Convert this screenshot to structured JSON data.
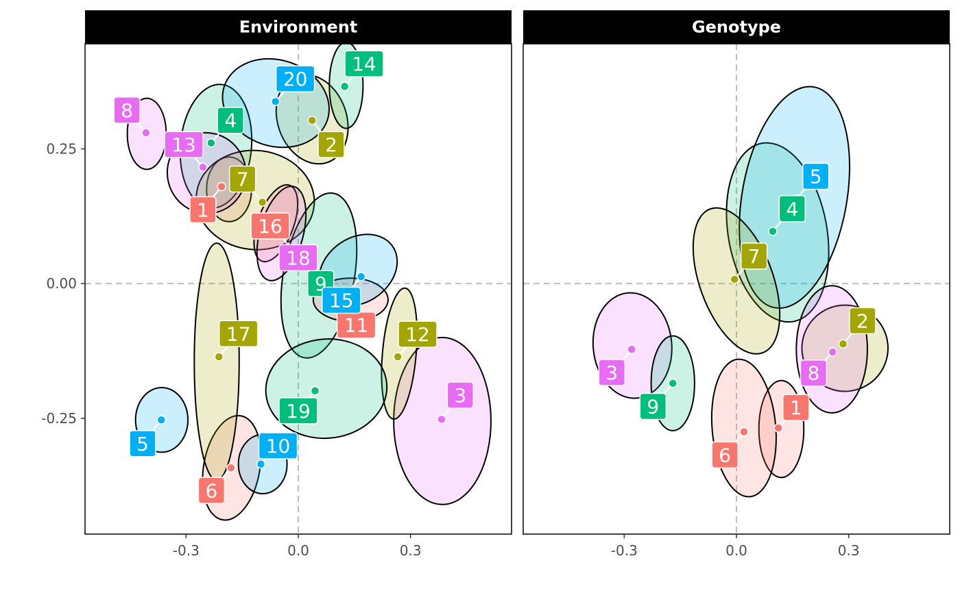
{
  "chart_data": {
    "type": "scatter",
    "xlim": [
      -0.57,
      0.57
    ],
    "ylim": [
      -0.465,
      0.445
    ],
    "x_ticks": [
      {
        "value": -0.3,
        "label": "-0.3"
      },
      {
        "value": 0.0,
        "label": "0.0"
      },
      {
        "value": 0.3,
        "label": "0.3"
      }
    ],
    "y_ticks": [
      {
        "value": 0.25,
        "label": "0.25"
      },
      {
        "value": 0.0,
        "label": "0.00"
      },
      {
        "value": -0.25,
        "label": "-0.25"
      }
    ],
    "reference_lines": {
      "x": 0,
      "y": 0,
      "style": "dashed"
    },
    "grid": false,
    "legend": "none",
    "group_colors": {
      "A": "#F8766D",
      "B": "#A3A500",
      "C": "#00BF7D",
      "D": "#00B0F6",
      "E": "#E76BF3"
    },
    "panels": [
      {
        "strip": "Environment",
        "points": [
          {
            "label": "1",
            "x": -0.205,
            "y": 0.18,
            "group": "A",
            "lx": -0.255,
            "ly": 0.137
          },
          {
            "label": "2",
            "x": 0.037,
            "y": 0.303,
            "group": "B",
            "lx": 0.088,
            "ly": 0.258
          },
          {
            "label": "3",
            "x": 0.383,
            "y": -0.252,
            "group": "E",
            "lx": 0.433,
            "ly": -0.207
          },
          {
            "label": "4",
            "x": -0.233,
            "y": 0.261,
            "group": "C",
            "lx": -0.181,
            "ly": 0.303
          },
          {
            "label": "5",
            "x": -0.366,
            "y": -0.253,
            "group": "D",
            "lx": -0.416,
            "ly": -0.297
          },
          {
            "label": "6",
            "x": -0.18,
            "y": -0.342,
            "group": "A",
            "lx": -0.232,
            "ly": -0.384
          },
          {
            "label": "7",
            "x": -0.096,
            "y": 0.151,
            "group": "B",
            "lx": -0.149,
            "ly": 0.194
          },
          {
            "label": "8",
            "x": -0.407,
            "y": 0.28,
            "group": "E",
            "lx": -0.458,
            "ly": 0.322
          },
          {
            "label": "9",
            "x": 0.075,
            "y": 0.017,
            "group": "C",
            "lx": 0.06,
            "ly": 0.0
          },
          {
            "label": "10",
            "x": -0.1,
            "y": -0.335,
            "group": "D",
            "lx": -0.054,
            "ly": -0.301
          },
          {
            "label": "11",
            "x": 0.145,
            "y": -0.045,
            "group": "A",
            "lx": 0.155,
            "ly": -0.077
          },
          {
            "label": "12",
            "x": 0.266,
            "y": -0.136,
            "group": "B",
            "lx": 0.319,
            "ly": -0.094
          },
          {
            "label": "13",
            "x": -0.255,
            "y": 0.216,
            "group": "E",
            "lx": -0.306,
            "ly": 0.258
          },
          {
            "label": "14",
            "x": 0.124,
            "y": 0.366,
            "group": "C",
            "lx": 0.176,
            "ly": 0.408
          },
          {
            "label": "15",
            "x": 0.168,
            "y": 0.013,
            "group": "D",
            "lx": 0.115,
            "ly": -0.031
          },
          {
            "label": "16",
            "x": -0.061,
            "y": 0.112,
            "group": "A",
            "lx": -0.075,
            "ly": 0.107
          },
          {
            "label": "17",
            "x": -0.212,
            "y": -0.136,
            "group": "B",
            "lx": -0.16,
            "ly": -0.093
          },
          {
            "label": "18",
            "x": -0.052,
            "y": 0.093,
            "group": "E",
            "lx": 0.0,
            "ly": 0.048
          },
          {
            "label": "19",
            "x": 0.045,
            "y": -0.199,
            "group": "C",
            "lx": 0.0,
            "ly": -0.236
          },
          {
            "label": "20",
            "x": -0.061,
            "y": 0.338,
            "group": "D",
            "lx": -0.008,
            "ly": 0.38
          }
        ],
        "ellipses": [
          {
            "group": "A",
            "cx": -0.185,
            "cy": 0.175,
            "rx": 0.06,
            "ry": 0.06,
            "angle": 0
          },
          {
            "group": "B",
            "cx": 0.037,
            "cy": 0.305,
            "rx": 0.092,
            "ry": 0.085,
            "angle": -20
          },
          {
            "group": "E",
            "cx": 0.385,
            "cy": -0.255,
            "rx": 0.13,
            "ry": 0.155,
            "angle": 0
          },
          {
            "group": "C",
            "cx": -0.22,
            "cy": 0.255,
            "rx": 0.095,
            "ry": 0.115,
            "angle": 5
          },
          {
            "group": "D",
            "cx": -0.365,
            "cy": -0.253,
            "rx": 0.07,
            "ry": 0.06,
            "angle": 0
          },
          {
            "group": "A",
            "cx": -0.178,
            "cy": -0.342,
            "rx": 0.075,
            "ry": 0.098,
            "angle": 10
          },
          {
            "group": "B",
            "cx": -0.115,
            "cy": 0.155,
            "rx": 0.158,
            "ry": 0.092,
            "angle": 5
          },
          {
            "group": "E",
            "cx": -0.405,
            "cy": 0.278,
            "rx": 0.052,
            "ry": 0.066,
            "angle": 0
          },
          {
            "group": "C",
            "cx": 0.055,
            "cy": 0.015,
            "rx": 0.095,
            "ry": 0.155,
            "angle": 10
          },
          {
            "group": "D",
            "cx": -0.095,
            "cy": -0.335,
            "rx": 0.065,
            "ry": 0.055,
            "angle": 0
          },
          {
            "group": "A",
            "cx": 0.14,
            "cy": -0.03,
            "rx": 0.1,
            "ry": 0.04,
            "angle": 0
          },
          {
            "group": "B",
            "cx": 0.27,
            "cy": -0.13,
            "rx": 0.045,
            "ry": 0.122,
            "angle": 5
          },
          {
            "group": "E",
            "cx": -0.245,
            "cy": 0.205,
            "rx": 0.105,
            "ry": 0.075,
            "angle": -15
          },
          {
            "group": "C",
            "cx": 0.128,
            "cy": 0.368,
            "rx": 0.045,
            "ry": 0.08,
            "angle": 0
          },
          {
            "group": "D",
            "cx": 0.16,
            "cy": 0.025,
            "rx": 0.112,
            "ry": 0.06,
            "angle": -35
          },
          {
            "group": "A",
            "cx": -0.06,
            "cy": 0.112,
            "rx": 0.048,
            "ry": 0.075,
            "angle": 20
          },
          {
            "group": "B",
            "cx": -0.218,
            "cy": -0.145,
            "rx": 0.06,
            "ry": 0.22,
            "angle": 0
          },
          {
            "group": "E",
            "cx": -0.045,
            "cy": 0.093,
            "rx": 0.058,
            "ry": 0.09,
            "angle": 15
          },
          {
            "group": "C",
            "cx": 0.075,
            "cy": -0.195,
            "rx": 0.162,
            "ry": 0.092,
            "angle": -5
          },
          {
            "group": "D",
            "cx": -0.06,
            "cy": 0.335,
            "rx": 0.145,
            "ry": 0.08,
            "angle": 18
          }
        ]
      },
      {
        "strip": "Genotype",
        "points": [
          {
            "label": "1",
            "x": 0.112,
            "y": -0.268,
            "group": "A",
            "lx": 0.159,
            "ly": -0.23
          },
          {
            "label": "2",
            "x": 0.285,
            "y": -0.112,
            "group": "B",
            "lx": 0.337,
            "ly": -0.069
          },
          {
            "label": "3",
            "x": -0.28,
            "y": -0.122,
            "group": "E",
            "lx": -0.333,
            "ly": -0.165
          },
          {
            "label": "4",
            "x": 0.097,
            "y": 0.097,
            "group": "C",
            "lx": 0.149,
            "ly": 0.139
          },
          {
            "label": "5",
            "x": 0.16,
            "y": 0.157,
            "group": "D",
            "lx": 0.212,
            "ly": 0.199
          },
          {
            "label": "6",
            "x": 0.02,
            "y": -0.275,
            "group": "A",
            "lx": -0.031,
            "ly": -0.318
          },
          {
            "label": "7",
            "x": -0.005,
            "y": 0.008,
            "group": "B",
            "lx": 0.047,
            "ly": 0.051
          },
          {
            "label": "8",
            "x": 0.257,
            "y": -0.127,
            "group": "E",
            "lx": 0.206,
            "ly": -0.166
          },
          {
            "label": "9",
            "x": -0.17,
            "y": -0.185,
            "group": "C",
            "lx": -0.223,
            "ly": -0.228
          }
        ],
        "ellipses": [
          {
            "group": "A",
            "cx": 0.12,
            "cy": -0.27,
            "rx": 0.06,
            "ry": 0.09,
            "angle": 0
          },
          {
            "group": "B",
            "cx": 0.29,
            "cy": -0.12,
            "rx": 0.115,
            "ry": 0.08,
            "angle": 15
          },
          {
            "group": "E",
            "cx": -0.278,
            "cy": -0.115,
            "rx": 0.105,
            "ry": 0.098,
            "angle": -5
          },
          {
            "group": "C",
            "cx": 0.11,
            "cy": 0.095,
            "rx": 0.132,
            "ry": 0.168,
            "angle": -10
          },
          {
            "group": "D",
            "cx": 0.155,
            "cy": 0.16,
            "rx": 0.14,
            "ry": 0.208,
            "angle": 10
          },
          {
            "group": "A",
            "cx": 0.02,
            "cy": -0.268,
            "rx": 0.085,
            "ry": 0.128,
            "angle": -5
          },
          {
            "group": "B",
            "cx": 0.0,
            "cy": 0.005,
            "rx": 0.098,
            "ry": 0.142,
            "angle": -20
          },
          {
            "group": "E",
            "cx": 0.255,
            "cy": -0.122,
            "rx": 0.095,
            "ry": 0.118,
            "angle": 0
          },
          {
            "group": "C",
            "cx": -0.17,
            "cy": -0.185,
            "rx": 0.058,
            "ry": 0.088,
            "angle": 0
          }
        ]
      }
    ]
  }
}
